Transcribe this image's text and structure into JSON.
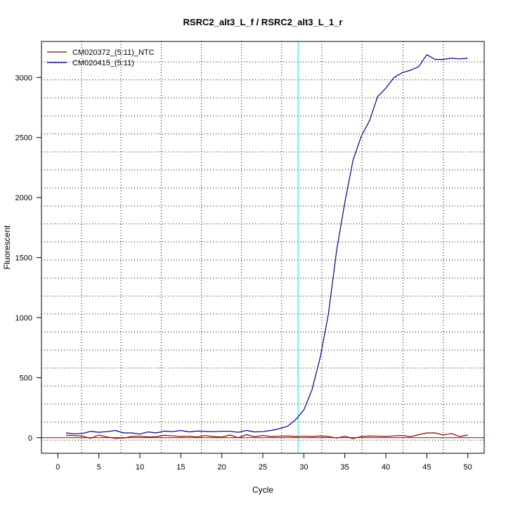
{
  "chart_data": {
    "type": "line",
    "title": "RSRC2_alt3_L_f / RSRC2_alt3_L_1_r",
    "xlabel": "Cycle",
    "ylabel": "Fluorescent",
    "xlim": [
      -2,
      52
    ],
    "ylim": [
      -130,
      3300
    ],
    "xticks": [
      0,
      5,
      10,
      15,
      20,
      25,
      30,
      35,
      40,
      45,
      50
    ],
    "yticks": [
      0,
      500,
      1000,
      1500,
      2000,
      2500,
      3000
    ],
    "grid_x": [
      2.9,
      7.7,
      12.6,
      17.5,
      22.4,
      27.3,
      32.2,
      37.1,
      42.1,
      47.0
    ],
    "grid_y": [
      -20,
      130,
      280,
      430,
      580,
      730,
      880,
      1030,
      1180,
      1330,
      1480,
      1630,
      1780,
      1930,
      2080,
      2230,
      2380,
      2530,
      2680,
      2830,
      2980,
      3130
    ],
    "threshold_x": 29.3,
    "threshold_color": "#00e5ee",
    "baseline_y": 0,
    "baseline_color": "#8b0000",
    "legend_position": "top-left",
    "series": [
      {
        "name": "CM020372_(5:11)_NTC",
        "color": "#8b0000",
        "x": [
          1,
          2,
          3,
          4,
          5,
          6,
          7,
          8,
          9,
          10,
          11,
          12,
          13,
          14,
          15,
          16,
          17,
          18,
          19,
          20,
          21,
          22,
          23,
          24,
          25,
          26,
          27,
          28,
          29,
          30,
          31,
          32,
          33,
          34,
          35,
          36,
          37,
          38,
          39,
          40,
          41,
          42,
          43,
          44,
          45,
          46,
          47,
          48,
          49,
          50
        ],
        "y": [
          20,
          18,
          12,
          -5,
          22,
          5,
          -5,
          -3,
          10,
          12,
          5,
          8,
          20,
          15,
          10,
          12,
          5,
          18,
          8,
          5,
          22,
          0,
          25,
          8,
          18,
          10,
          12,
          14,
          10,
          12,
          10,
          14,
          10,
          -3,
          12,
          -8,
          10,
          14,
          12,
          10,
          15,
          18,
          8,
          25,
          40,
          40,
          22,
          35,
          10,
          22
        ]
      },
      {
        "name": "CM020415_(5:11)",
        "color": "#00007f",
        "x": [
          1,
          2,
          3,
          4,
          5,
          6,
          7,
          8,
          9,
          10,
          11,
          12,
          13,
          14,
          15,
          16,
          17,
          18,
          19,
          20,
          21,
          22,
          23,
          24,
          25,
          26,
          27,
          28,
          29,
          30,
          31,
          32,
          33,
          34,
          35,
          36,
          37,
          38,
          39,
          40,
          41,
          42,
          43,
          44,
          45,
          46,
          47,
          48,
          49,
          50
        ],
        "y": [
          40,
          32,
          35,
          52,
          45,
          50,
          60,
          40,
          40,
          30,
          48,
          40,
          55,
          50,
          60,
          48,
          55,
          52,
          50,
          53,
          53,
          45,
          60,
          48,
          50,
          60,
          75,
          95,
          150,
          230,
          400,
          670,
          1030,
          1560,
          1960,
          2310,
          2510,
          2640,
          2840,
          2910,
          3000,
          3040,
          3060,
          3090,
          3190,
          3150,
          3150,
          3160,
          3155,
          3160
        ]
      }
    ]
  }
}
